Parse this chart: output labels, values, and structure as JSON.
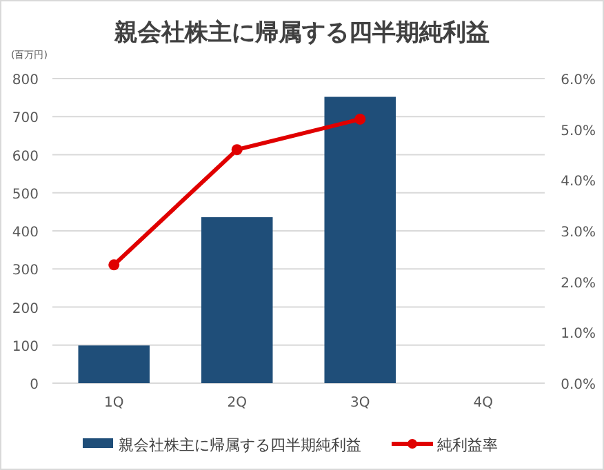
{
  "chart_data": {
    "type": "bar",
    "title": "親会社株主に帰属する四半期純利益",
    "ylabel": "(百万円)",
    "categories": [
      "1Q",
      "2Q",
      "3Q",
      "4Q"
    ],
    "series": [
      {
        "name": "親会社株主に帰属する四半期純利益",
        "color": "#1f4e79",
        "values": [
          99,
          436,
          752,
          null
        ]
      },
      {
        "name": "純利益率",
        "color": "#e00000",
        "type": "line",
        "axis": "y2",
        "marker": "circle",
        "values": [
          2.33,
          4.6,
          5.2,
          null
        ]
      }
    ],
    "ylim": [
      0,
      800
    ],
    "yticks": [
      0,
      100,
      200,
      300,
      400,
      500,
      600,
      700,
      800
    ],
    "y2lim": [
      0,
      6
    ],
    "y2ticks": [
      {
        "value": 0,
        "label": "0.0%"
      },
      {
        "value": 1,
        "label": "1.0%"
      },
      {
        "value": 2,
        "label": "2.0%"
      },
      {
        "value": 3,
        "label": "3.0%"
      },
      {
        "value": 4,
        "label": "4.0%"
      },
      {
        "value": 5,
        "label": "5.0%"
      },
      {
        "value": 6,
        "label": "6.0%"
      }
    ],
    "grid": "y",
    "legend": "bottom"
  }
}
